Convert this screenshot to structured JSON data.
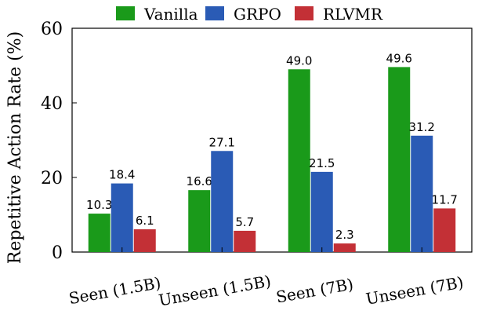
{
  "chart_data": {
    "type": "bar",
    "title": "",
    "xlabel": "",
    "ylabel": "Repetitive Action Rate (%)",
    "ylim": [
      0,
      60
    ],
    "yticks": [
      0,
      20,
      40,
      60
    ],
    "categories": [
      "Seen (1.5B)",
      "Unseen (1.5B)",
      "Seen (7B)",
      "Unseen (7B)"
    ],
    "series": [
      {
        "name": "Vanilla",
        "color": "#1a9a1a",
        "values": [
          10.3,
          16.6,
          49.0,
          49.6
        ],
        "labels": [
          "10.3",
          "16.6",
          "49.0",
          "49.6"
        ]
      },
      {
        "name": "GRPO",
        "color": "#2a5bb5",
        "values": [
          18.4,
          27.1,
          21.5,
          31.2
        ],
        "labels": [
          "18.4",
          "27.1",
          "21.5",
          "31.2"
        ]
      },
      {
        "name": "RLVMR",
        "color": "#c33036",
        "values": [
          6.1,
          5.7,
          2.3,
          11.7
        ],
        "labels": [
          "6.1",
          "5.7",
          "2.3",
          "11.7"
        ]
      }
    ],
    "legend": "top-center",
    "grid": false
  }
}
